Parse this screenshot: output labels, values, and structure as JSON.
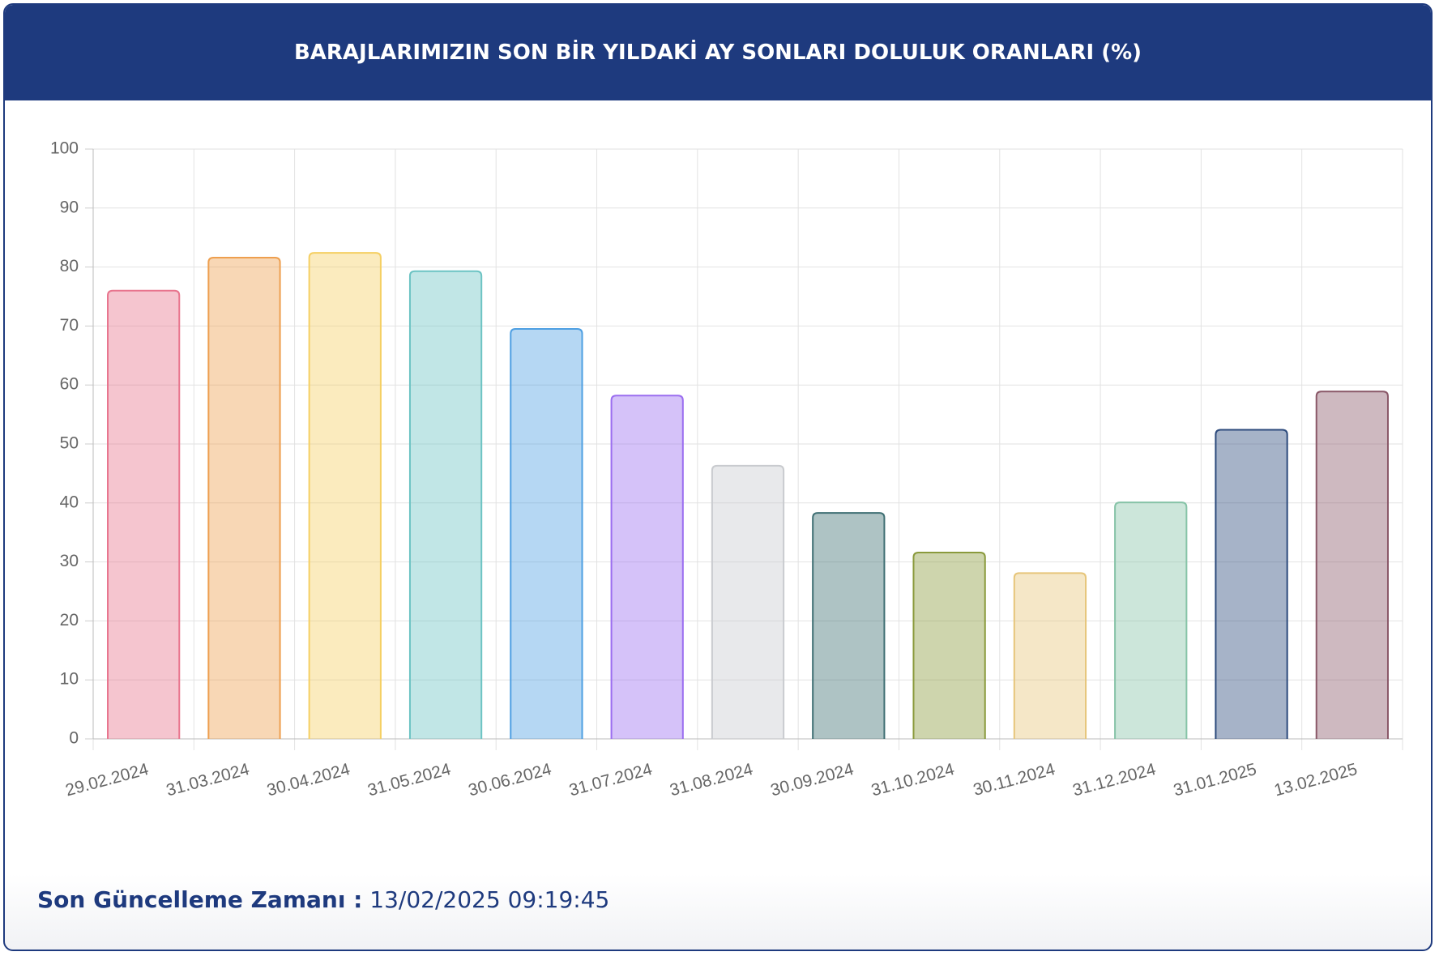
{
  "chart_data": {
    "type": "bar",
    "title": "BARAJLARIMIZIN SON BİR YILDAKİ AY SONLARI DOLULUK ORANLARI (%)",
    "categories": [
      "29.02.2024",
      "31.03.2024",
      "30.04.2024",
      "31.05.2024",
      "30.06.2024",
      "31.07.2024",
      "31.08.2024",
      "30.09.2024",
      "31.10.2024",
      "30.11.2024",
      "31.12.2024",
      "31.01.2025",
      "13.02.2025"
    ],
    "values": [
      76.0,
      81.6,
      82.4,
      79.3,
      69.5,
      58.2,
      46.3,
      38.3,
      31.6,
      28.1,
      40.1,
      52.4,
      58.9
    ],
    "colors": [
      "#e8748d",
      "#ee9f4f",
      "#f5cf63",
      "#6cc3c3",
      "#4e9fe2",
      "#9b6ef0",
      "#c9cbcf",
      "#3f6f73",
      "#8a9a3c",
      "#e6c57a",
      "#86c3a7",
      "#2c4a7c",
      "#8a5868"
    ],
    "ylim": [
      0,
      100
    ],
    "yticks": [
      0,
      10,
      20,
      30,
      40,
      50,
      60,
      70,
      80,
      90,
      100
    ],
    "grid": true
  },
  "footer": {
    "label": "Son Güncelleme Zamanı :",
    "value": "13/02/2025 09:19:45"
  }
}
